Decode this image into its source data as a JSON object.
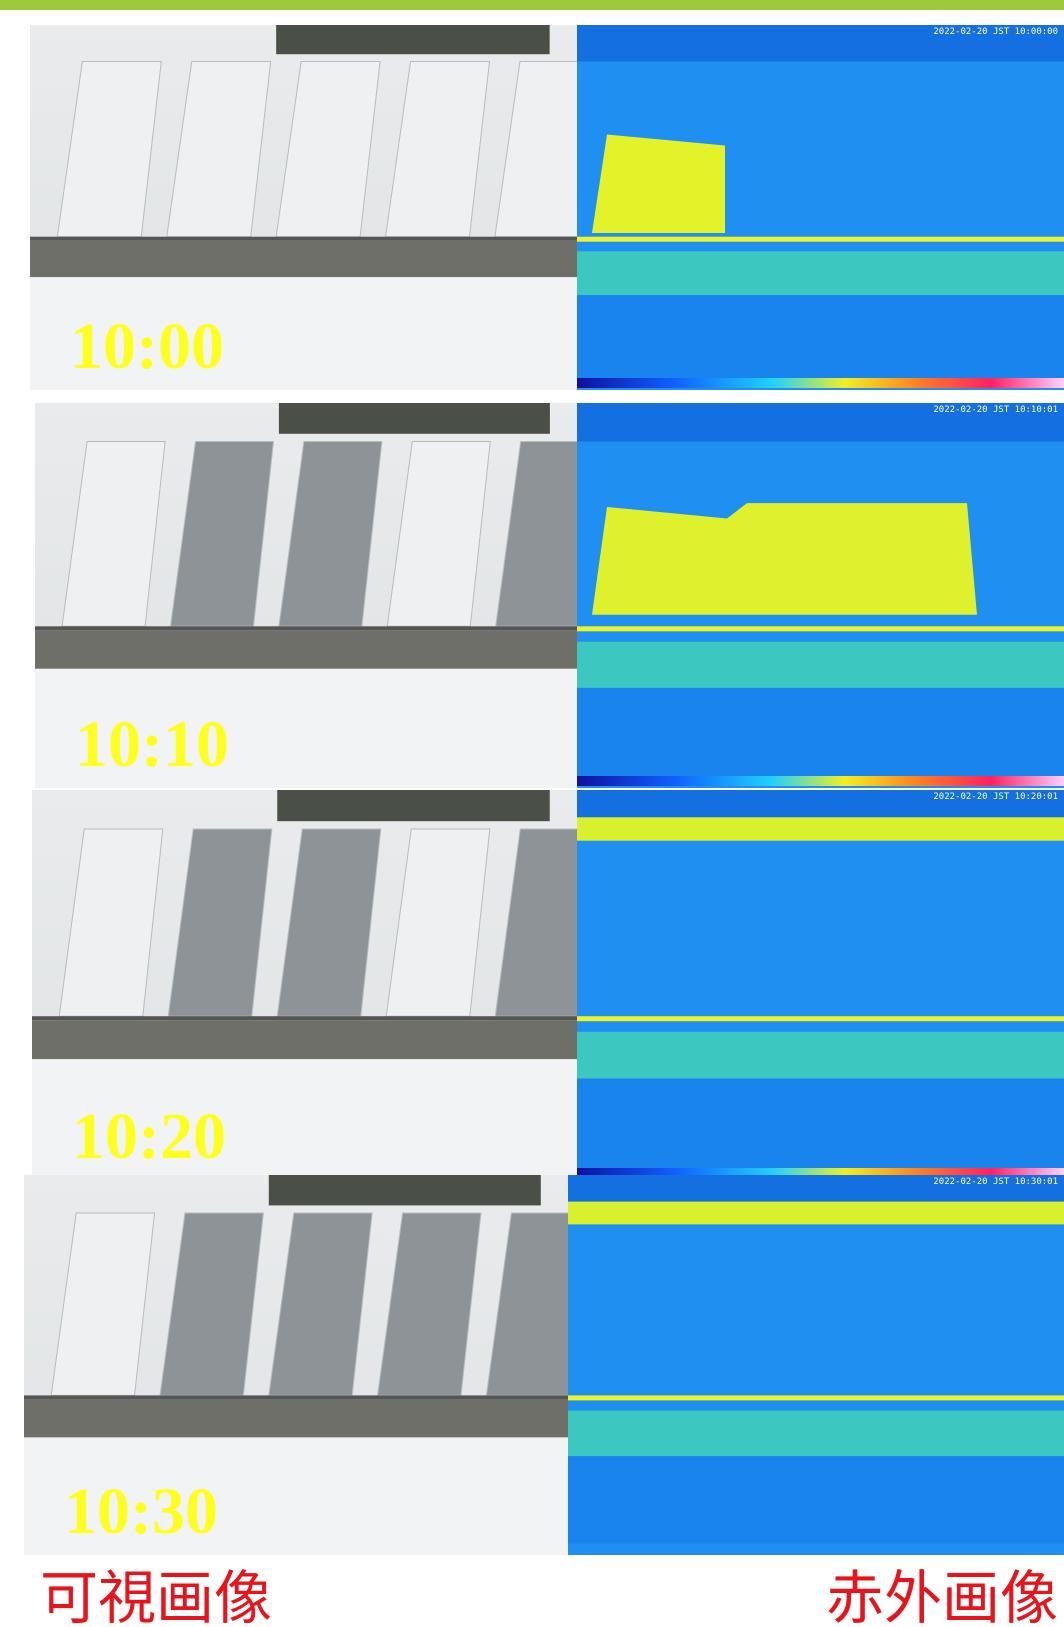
{
  "panels": [
    {
      "time": "10:00",
      "ir_timestamp": "2022-02-20 JST 10:00:00"
    },
    {
      "time": "10:10",
      "ir_timestamp": "2022-02-20 JST 10:10:01"
    },
    {
      "time": "10:20",
      "ir_timestamp": "2022-02-20 JST 10:20:01"
    },
    {
      "time": "10:30",
      "ir_timestamp": "2022-02-20 JST 10:30:01"
    }
  ],
  "labels": {
    "visible": "可視画像",
    "infrared": "赤外画像"
  }
}
